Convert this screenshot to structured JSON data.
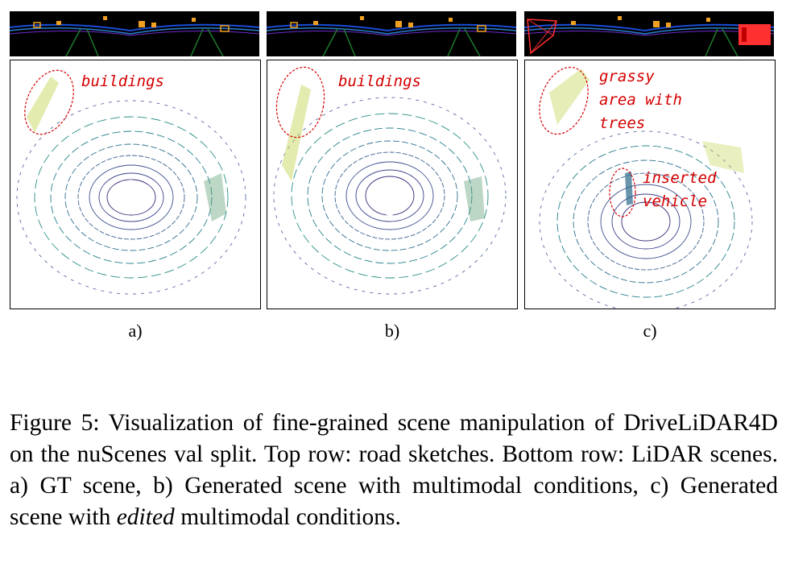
{
  "panels": [
    {
      "label": "a)",
      "annotations": [
        "buildings"
      ]
    },
    {
      "label": "b)",
      "annotations": [
        "buildings"
      ]
    },
    {
      "label": "c)",
      "annotations": [
        "grassy",
        "area with",
        "trees",
        "inserted",
        "vehicle"
      ]
    }
  ],
  "caption": {
    "before": "Figure 5: Visualization of fine-grained scene manipulation of DriveLiDAR4D on the nuScenes val split. Top row: road sketches. Bottom row: LiDAR scenes. a) GT scene, b) Generated scene with multimodal conditions, c) Generated scene with ",
    "emph": "edited",
    "after": " multimodal conditions."
  },
  "colors": {
    "annotation": "#d40000",
    "sketch_bg": "#000000",
    "road": "#1c7a2c",
    "lane": "#1a4cd6",
    "box": "#f0a020",
    "edit_box": "#ff3030"
  }
}
